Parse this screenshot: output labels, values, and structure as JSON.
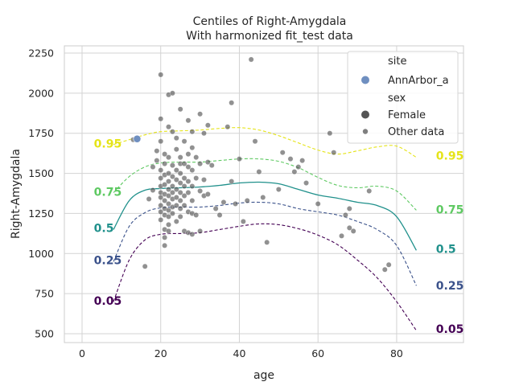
{
  "chart_data": {
    "type": "line",
    "title": "Centiles of Right-Amygdala",
    "subtitle": "With harmonized fit_test data",
    "xlabel": "age",
    "ylabel": "Right-Amygdala",
    "xlim": [
      -4.5,
      97
    ],
    "ylim": [
      445,
      2295
    ],
    "xticks": [
      0,
      20,
      40,
      60,
      80
    ],
    "yticks": [
      500,
      750,
      1000,
      1250,
      1500,
      1750,
      2000,
      2250
    ],
    "grid": true,
    "legend": {
      "placement": "top-right",
      "entries": [
        {
          "kind": "header",
          "text": "site"
        },
        {
          "kind": "marker",
          "text": "AnnArbor_a",
          "color": "#6f8fc0",
          "size": "large"
        },
        {
          "kind": "header",
          "text": "sex"
        },
        {
          "kind": "marker",
          "text": "Female",
          "color": "#555555",
          "size": "large"
        },
        {
          "kind": "marker",
          "text": "Other data",
          "color": "#7f7f7f",
          "size": "small"
        }
      ]
    },
    "centiles": [
      {
        "name": "0.05",
        "color": "#440154",
        "dashed": true,
        "x": [
          8,
          12,
          16,
          20,
          25,
          30,
          35,
          40,
          45,
          50,
          55,
          60,
          65,
          70,
          75,
          80,
          85
        ],
        "y": [
          700,
          960,
          1085,
          1120,
          1125,
          1130,
          1150,
          1170,
          1185,
          1180,
          1155,
          1115,
          1055,
          960,
          850,
          700,
          520
        ],
        "label_left": {
          "x": 3,
          "y": 705
        },
        "label_right": {
          "x": 90,
          "y": 530
        }
      },
      {
        "name": "0.25",
        "color": "#3b528b",
        "dashed": true,
        "x": [
          8,
          12,
          16,
          20,
          25,
          30,
          35,
          40,
          45,
          50,
          55,
          60,
          65,
          70,
          75,
          80,
          85
        ],
        "y": [
          950,
          1170,
          1255,
          1285,
          1290,
          1290,
          1300,
          1315,
          1320,
          1310,
          1280,
          1260,
          1240,
          1200,
          1150,
          1050,
          800
        ],
        "label_left": {
          "x": 3,
          "y": 960
        },
        "label_right": {
          "x": 90,
          "y": 800
        }
      },
      {
        "name": "0.5",
        "color": "#21918c",
        "dashed": false,
        "x": [
          8,
          12,
          16,
          20,
          25,
          30,
          35,
          40,
          45,
          50,
          55,
          60,
          65,
          70,
          75,
          80,
          85
        ],
        "y": [
          1150,
          1330,
          1395,
          1405,
          1410,
          1415,
          1425,
          1440,
          1445,
          1435,
          1400,
          1365,
          1345,
          1320,
          1300,
          1230,
          1020
        ],
        "label_left": {
          "x": 3,
          "y": 1160
        },
        "label_right": {
          "x": 90,
          "y": 1030
        }
      },
      {
        "name": "0.75",
        "color": "#5ec962",
        "dashed": true,
        "x": [
          8,
          12,
          16,
          20,
          25,
          30,
          35,
          40,
          45,
          50,
          55,
          60,
          65,
          70,
          75,
          80,
          85
        ],
        "y": [
          1380,
          1480,
          1540,
          1565,
          1570,
          1570,
          1580,
          1590,
          1590,
          1575,
          1535,
          1475,
          1425,
          1410,
          1420,
          1390,
          1270
        ],
        "label_left": {
          "x": 3,
          "y": 1385
        },
        "label_right": {
          "x": 90,
          "y": 1275
        }
      },
      {
        "name": "0.95",
        "color": "#e5e419",
        "dashed": true,
        "x": [
          8,
          12,
          16,
          20,
          25,
          30,
          35,
          40,
          45,
          50,
          55,
          60,
          65,
          70,
          75,
          80,
          85
        ],
        "y": [
          1680,
          1710,
          1740,
          1760,
          1765,
          1770,
          1780,
          1785,
          1770,
          1735,
          1690,
          1645,
          1620,
          1640,
          1665,
          1670,
          1600
        ],
        "label_left": {
          "x": 3,
          "y": 1685
        },
        "label_right": {
          "x": 90,
          "y": 1610
        }
      }
    ],
    "other_data": [
      [
        13,
        1710
      ],
      [
        16,
        920
      ],
      [
        17,
        1340
      ],
      [
        18,
        1395
      ],
      [
        18,
        1540
      ],
      [
        19,
        1580
      ],
      [
        19,
        1640
      ],
      [
        20,
        2115
      ],
      [
        20,
        1840
      ],
      [
        20,
        1700
      ],
      [
        20,
        1520
      ],
      [
        20,
        1470
      ],
      [
        20,
        1420
      ],
      [
        20,
        1380
      ],
      [
        20,
        1350
      ],
      [
        20,
        1300
      ],
      [
        20,
        1260
      ],
      [
        20,
        1210
      ],
      [
        21,
        1150
      ],
      [
        21,
        1100
      ],
      [
        21,
        1050
      ],
      [
        21,
        1620
      ],
      [
        21,
        1560
      ],
      [
        21,
        1490
      ],
      [
        21,
        1430
      ],
      [
        21,
        1370
      ],
      [
        21,
        1330
      ],
      [
        21,
        1280
      ],
      [
        21,
        1240
      ],
      [
        22,
        1990
      ],
      [
        22,
        1790
      ],
      [
        22,
        1600
      ],
      [
        22,
        1500
      ],
      [
        22,
        1450
      ],
      [
        22,
        1400
      ],
      [
        22,
        1360
      ],
      [
        22,
        1310
      ],
      [
        22,
        1270
      ],
      [
        22,
        1230
      ],
      [
        22,
        1180
      ],
      [
        22,
        1140
      ],
      [
        23,
        2000
      ],
      [
        23,
        1760
      ],
      [
        23,
        1550
      ],
      [
        23,
        1480
      ],
      [
        23,
        1420
      ],
      [
        23,
        1380
      ],
      [
        23,
        1340
      ],
      [
        23,
        1290
      ],
      [
        23,
        1250
      ],
      [
        24,
        1720
      ],
      [
        24,
        1650
      ],
      [
        24,
        1520
      ],
      [
        24,
        1460
      ],
      [
        24,
        1400
      ],
      [
        24,
        1350
      ],
      [
        24,
        1300
      ],
      [
        24,
        1200
      ],
      [
        25,
        1900
      ],
      [
        25,
        1600
      ],
      [
        25,
        1560
      ],
      [
        25,
        1500
      ],
      [
        25,
        1440
      ],
      [
        25,
        1380
      ],
      [
        25,
        1330
      ],
      [
        25,
        1280
      ],
      [
        25,
        1230
      ],
      [
        26,
        1700
      ],
      [
        26,
        1560
      ],
      [
        26,
        1470
      ],
      [
        26,
        1420
      ],
      [
        26,
        1360
      ],
      [
        26,
        1300
      ],
      [
        26,
        1140
      ],
      [
        27,
        1830
      ],
      [
        27,
        1620
      ],
      [
        27,
        1540
      ],
      [
        27,
        1450
      ],
      [
        27,
        1380
      ],
      [
        27,
        1260
      ],
      [
        27,
        1130
      ],
      [
        28,
        1760
      ],
      [
        28,
        1660
      ],
      [
        28,
        1520
      ],
      [
        28,
        1420
      ],
      [
        28,
        1330
      ],
      [
        28,
        1250
      ],
      [
        28,
        1120
      ],
      [
        29,
        1600
      ],
      [
        29,
        1470
      ],
      [
        29,
        1240
      ],
      [
        30,
        1870
      ],
      [
        30,
        1560
      ],
      [
        30,
        1390
      ],
      [
        30,
        1140
      ],
      [
        31,
        1750
      ],
      [
        31,
        1460
      ],
      [
        31,
        1360
      ],
      [
        32,
        1800
      ],
      [
        32,
        1570
      ],
      [
        32,
        1370
      ],
      [
        33,
        1550
      ],
      [
        34,
        1280
      ],
      [
        35,
        1240
      ],
      [
        36,
        1320
      ],
      [
        37,
        1790
      ],
      [
        38,
        1940
      ],
      [
        38,
        1450
      ],
      [
        39,
        1310
      ],
      [
        40,
        1590
      ],
      [
        41,
        1200
      ],
      [
        42,
        1330
      ],
      [
        43,
        2210
      ],
      [
        44,
        1700
      ],
      [
        45,
        1510
      ],
      [
        46,
        1350
      ],
      [
        47,
        1070
      ],
      [
        50,
        1400
      ],
      [
        51,
        1630
      ],
      [
        53,
        1590
      ],
      [
        54,
        1510
      ],
      [
        55,
        1540
      ],
      [
        56,
        1580
      ],
      [
        57,
        1440
      ],
      [
        60,
        1310
      ],
      [
        63,
        1750
      ],
      [
        64,
        1630
      ],
      [
        66,
        1110
      ],
      [
        67,
        1240
      ],
      [
        68,
        1280
      ],
      [
        68,
        1160
      ],
      [
        69,
        1140
      ],
      [
        73,
        1390
      ],
      [
        77,
        900
      ],
      [
        78,
        930
      ]
    ],
    "highlight_point": {
      "site": "AnnArbor_a",
      "x": 14,
      "y": 1715,
      "color": "#6f8fc0"
    }
  }
}
